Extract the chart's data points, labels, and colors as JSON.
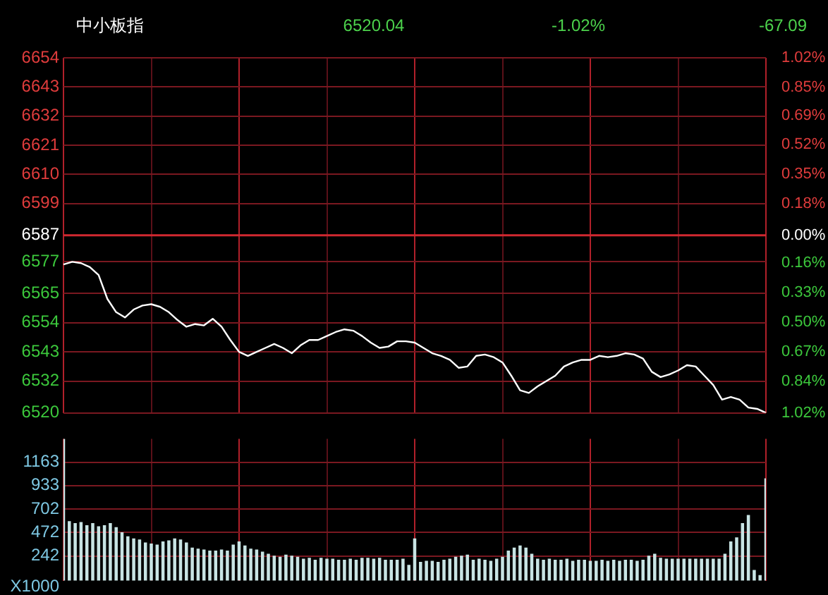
{
  "chart_data": [
    {
      "type": "line",
      "title": "中小板指",
      "annotations": [
        "6520.04",
        "-1.02%",
        "-67.09"
      ],
      "categories": [
        null,
        null,
        null,
        null,
        null,
        null,
        null,
        null,
        null,
        null,
        null,
        null,
        null,
        null,
        null,
        null,
        null,
        null,
        null,
        null,
        null,
        null,
        null,
        null,
        null,
        null,
        null,
        null,
        null,
        null,
        null,
        null,
        null,
        null,
        null,
        null,
        null,
        null,
        null,
        null,
        null,
        null,
        null,
        null,
        null,
        null,
        null,
        null,
        null,
        null,
        null,
        null,
        null,
        null,
        null,
        null,
        null,
        null,
        null,
        null,
        null,
        null,
        null,
        null,
        null,
        null,
        null,
        null,
        null,
        null,
        null,
        null,
        null,
        null,
        null,
        null,
        null,
        null,
        null,
        null,
        null
      ],
      "series": [
        {
          "color": "#ffffff",
          "values": [
            6576,
            6577,
            6576.5,
            6575,
            6572,
            6563,
            6558,
            6556,
            6559,
            6560.5,
            6561,
            6560,
            6558,
            6555,
            6552.5,
            6553.5,
            6553,
            6555.5,
            6552.5,
            6547.5,
            6543,
            6541.5,
            6543,
            6544.5,
            6546,
            6544.5,
            6542.5,
            6545.5,
            6547.5,
            6547.5,
            6549,
            6550.5,
            6551.5,
            6551,
            6549,
            6546.5,
            6544.5,
            6545,
            6547,
            6547,
            6546.5,
            6544.5,
            6542.5,
            6541.5,
            6540,
            6537,
            6537.5,
            6541.5,
            6542,
            6541,
            6539,
            6534,
            6528.5,
            6527.5,
            6530,
            6532,
            6534,
            6537.5,
            6539,
            6540,
            6540,
            6541.5,
            6541,
            6541.5,
            6542.5,
            6542,
            6540.5,
            6535.5,
            6533.5,
            6534.5,
            6536,
            6538,
            6537.5,
            6534,
            6530.5,
            6525,
            6526,
            6525,
            6522,
            6521.5,
            6520
          ]
        }
      ],
      "ylim": [
        6520,
        6654
      ],
      "yticks": [
        6520,
        6532,
        6543,
        6554,
        6565,
        6577,
        6587,
        6599,
        6610,
        6621,
        6632,
        6643,
        6654
      ],
      "y2lim": [
        -1.02,
        1.02
      ],
      "y2ticks": [
        {
          "value": -1.02,
          "label": "1.02%"
        },
        {
          "value": -0.84,
          "label": "0.84%"
        },
        {
          "value": -0.67,
          "label": "0.67%"
        },
        {
          "value": -0.5,
          "label": "0.50%"
        },
        {
          "value": -0.33,
          "label": "0.33%"
        },
        {
          "value": -0.16,
          "label": "0.16%"
        },
        {
          "value": 0,
          "label": "0.00%"
        },
        {
          "value": 0.18,
          "label": "0.18%"
        },
        {
          "value": 0.35,
          "label": "0.35%"
        },
        {
          "value": 0.52,
          "label": "0.52%"
        },
        {
          "value": 0.69,
          "label": "0.69%"
        },
        {
          "value": 0.85,
          "label": "0.85%"
        },
        {
          "value": 1.02,
          "label": "1.02%"
        }
      ],
      "ref_lines": [
        {
          "axis": "y",
          "value": 6587,
          "color": "#d02830"
        }
      ],
      "tick_labels": "y",
      "grid": true,
      "legend": false,
      "marker": "none"
    },
    {
      "type": "bar",
      "ylabel": "X1000",
      "categories": [
        null,
        null,
        null,
        null,
        null,
        null,
        null,
        null,
        null,
        null,
        null,
        null,
        null,
        null,
        null,
        null,
        null,
        null,
        null,
        null,
        null,
        null,
        null,
        null,
        null,
        null,
        null,
        null,
        null,
        null,
        null,
        null,
        null,
        null,
        null,
        null,
        null,
        null,
        null,
        null,
        null,
        null,
        null,
        null,
        null,
        null,
        null,
        null,
        null,
        null,
        null,
        null,
        null,
        null,
        null,
        null,
        null,
        null,
        null,
        null,
        null,
        null,
        null,
        null,
        null,
        null,
        null,
        null,
        null,
        null,
        null,
        null,
        null,
        null,
        null,
        null,
        null,
        null,
        null,
        null,
        null,
        null,
        null,
        null,
        null,
        null,
        null,
        null,
        null,
        null,
        null,
        null,
        null,
        null,
        null,
        null,
        null,
        null,
        null,
        null,
        null,
        null,
        null,
        null,
        null,
        null,
        null,
        null,
        null,
        null,
        null,
        null,
        null,
        null,
        null,
        null,
        null,
        null,
        null,
        null,
        null
      ],
      "series": [
        {
          "color": "#c8e4e4",
          "values": [
            1390,
            580,
            560,
            570,
            540,
            560,
            530,
            540,
            560,
            520,
            470,
            430,
            410,
            400,
            370,
            360,
            350,
            380,
            390,
            410,
            400,
            370,
            320,
            310,
            300,
            290,
            290,
            300,
            290,
            350,
            380,
            340,
            310,
            300,
            280,
            260,
            240,
            230,
            250,
            240,
            230,
            210,
            220,
            200,
            220,
            210,
            210,
            200,
            200,
            210,
            200,
            220,
            220,
            210,
            220,
            200,
            200,
            200,
            210,
            150,
            410,
            180,
            190,
            190,
            180,
            200,
            210,
            230,
            240,
            250,
            200,
            210,
            200,
            190,
            210,
            230,
            290,
            320,
            340,
            320,
            260,
            210,
            200,
            210,
            200,
            200,
            210,
            190,
            200,
            200,
            190,
            190,
            200,
            190,
            200,
            190,
            200,
            200,
            190,
            200,
            240,
            260,
            220,
            210,
            210,
            210,
            210,
            210,
            210,
            210,
            210,
            210,
            210,
            260,
            380,
            420,
            560,
            640,
            100,
            50,
            1000
          ]
        }
      ],
      "ylim": [
        0,
        1393
      ],
      "yticks": [
        242,
        472,
        702,
        933,
        1163
      ],
      "tick_labels": "y",
      "grid": true,
      "legend": false
    }
  ]
}
